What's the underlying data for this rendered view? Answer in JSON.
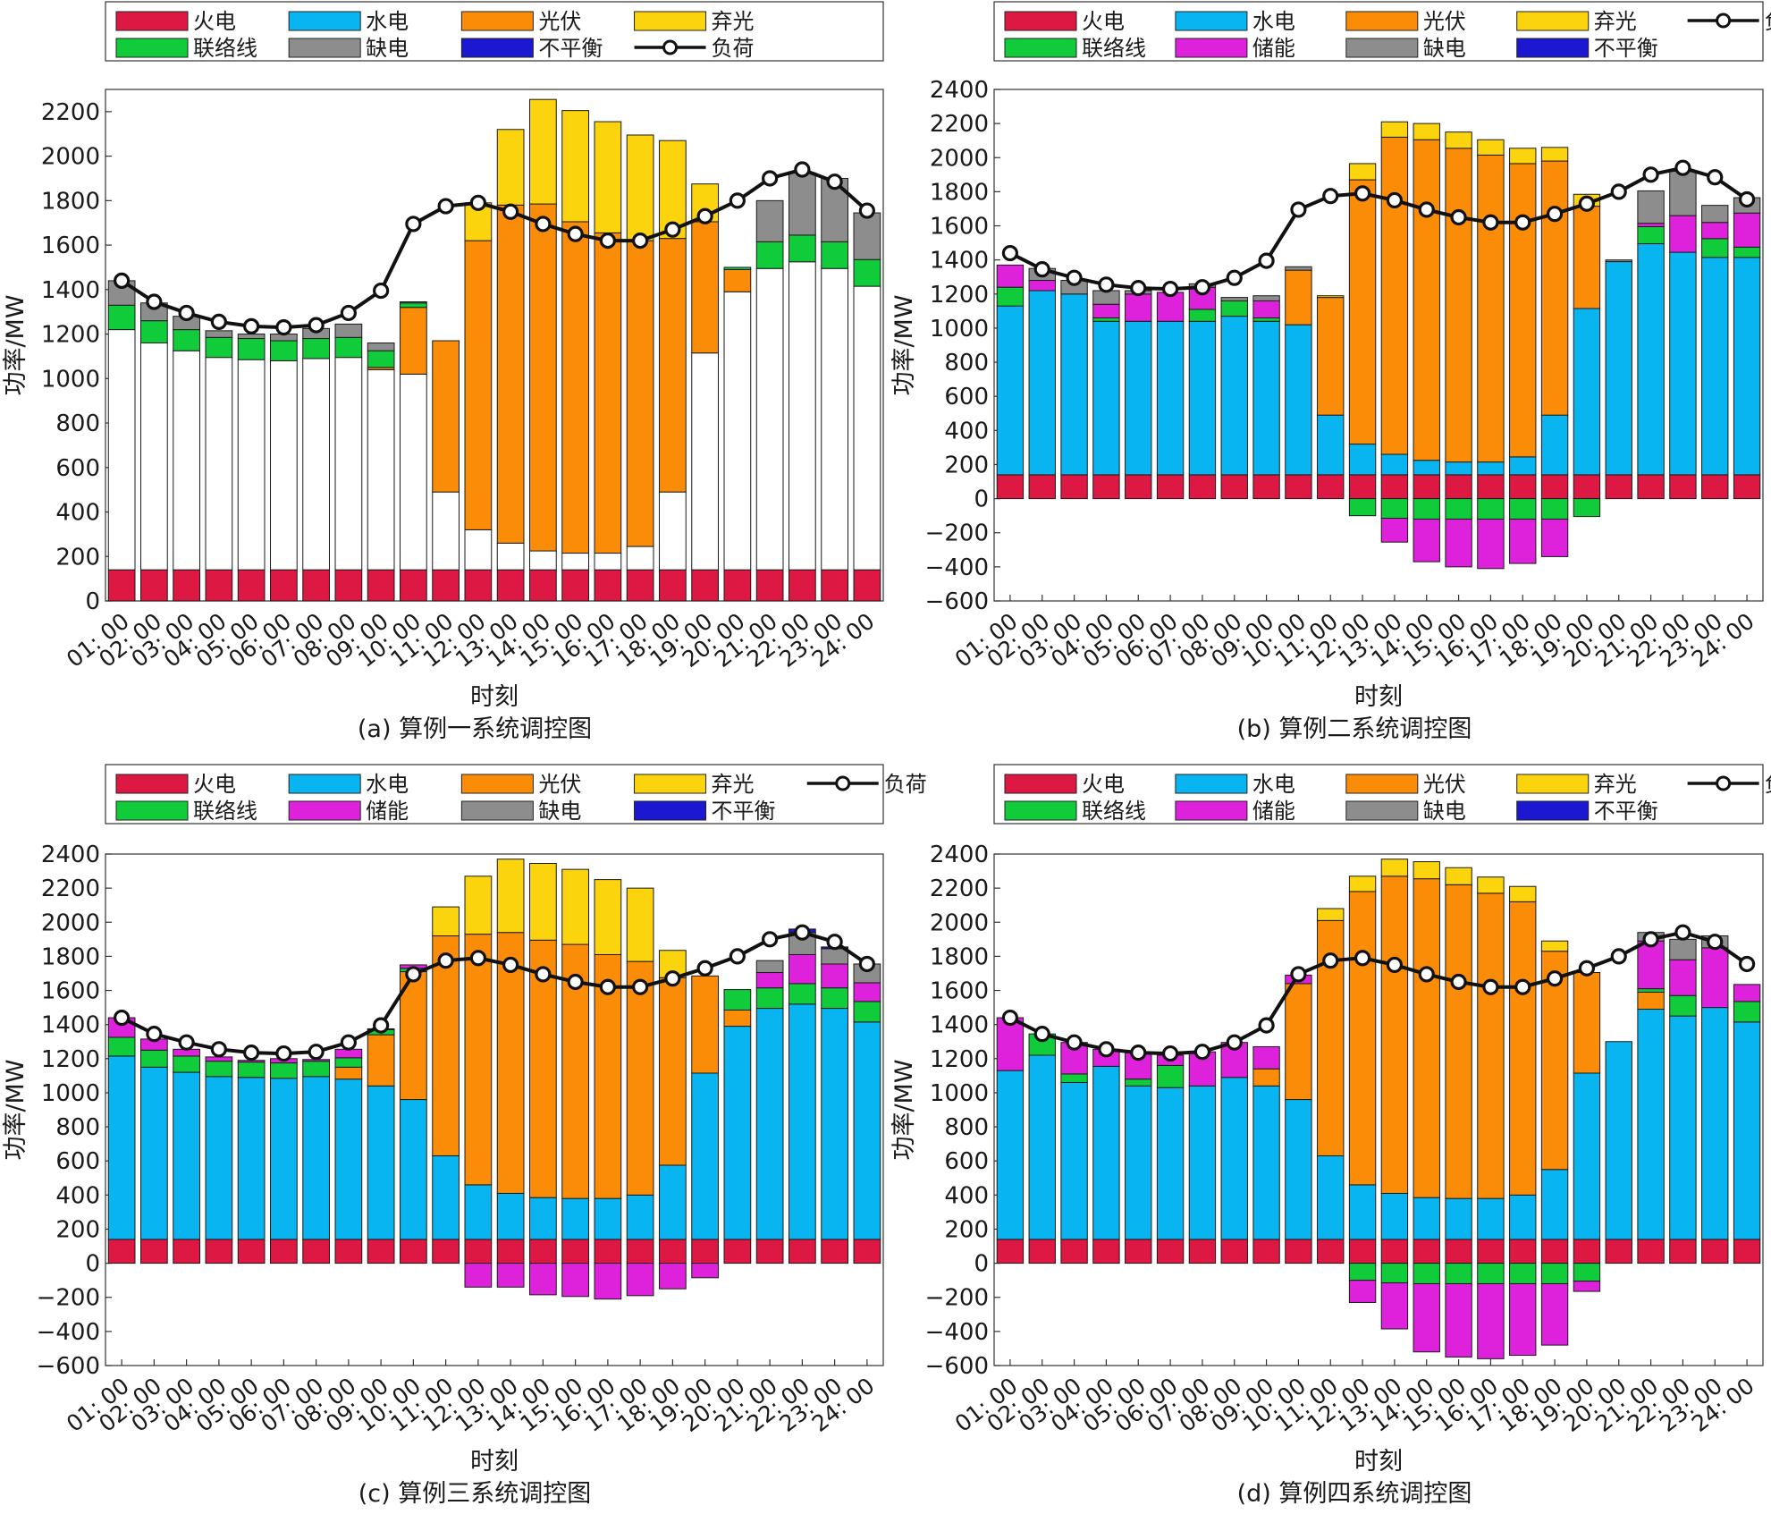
{
  "legend_labels": {
    "thermal": "火电",
    "hydro": "水电",
    "pv": "光伏",
    "curtail": "弃光",
    "tie": "联络线",
    "storage": "储能",
    "shortage": "缺电",
    "imbalance": "不平衡",
    "load": "负荷"
  },
  "colors": {
    "thermal": "#dc1843",
    "hydro": "#08b5f0",
    "pv": "#fb8c08",
    "curtail": "#fcd40e",
    "tie": "#10cc3b",
    "storage": "#de22dc",
    "shortage": "#8d8d8d",
    "imbalance": "#1c18d2",
    "load": "#111111"
  },
  "x_ticks": [
    "01:",
    "02:",
    "03:",
    "04:",
    "05:",
    "06:",
    "07:",
    "08:",
    "09:",
    "10:",
    "11:",
    "12:",
    "13:",
    "14:",
    "15:",
    "16:",
    "17:",
    "18:",
    "19:",
    "20:",
    "21:",
    "22:",
    "23:",
    "24:"
  ],
  "x_tick_suffix": "00",
  "chart_data": [
    {
      "type": "bar",
      "caption": "(a)  算例一系统调控图",
      "xlabel": "时刻",
      "ylabel": "功率/MW",
      "ylim": [
        0,
        2300
      ],
      "yticks": [
        0,
        200,
        400,
        600,
        800,
        1000,
        1200,
        1400,
        1600,
        1800,
        2000,
        2200
      ],
      "legend": [
        "thermal",
        "hydro",
        "pv",
        "curtail",
        "tie",
        "shortage",
        "imbalance",
        "load"
      ],
      "series": [
        {
          "key": "thermal",
          "name": "火电",
          "values": [
            140,
            140,
            140,
            140,
            140,
            140,
            140,
            140,
            140,
            140,
            140,
            140,
            140,
            140,
            140,
            140,
            140,
            140,
            140,
            140,
            140,
            140,
            140,
            140
          ]
        },
        {
          "key": "hydro_white",
          "name": "",
          "fill": "#ffffff",
          "values": [
            1080,
            1020,
            985,
            955,
            945,
            940,
            950,
            955,
            900,
            880,
            350,
            180,
            120,
            85,
            75,
            75,
            105,
            350,
            975,
            1250,
            1355,
            1385,
            1355,
            1275
          ]
        },
        {
          "key": "pv",
          "name": "光伏",
          "values": [
            0,
            0,
            0,
            0,
            0,
            0,
            0,
            0,
            10,
            300,
            680,
            1300,
            1520,
            1560,
            1490,
            1440,
            1375,
            1140,
            590,
            100,
            0,
            0,
            0,
            0
          ]
        },
        {
          "key": "curtail",
          "name": "弃光",
          "values": [
            0,
            0,
            0,
            0,
            0,
            0,
            0,
            0,
            0,
            0,
            0,
            170,
            340,
            470,
            500,
            500,
            475,
            440,
            170,
            0,
            0,
            0,
            0,
            0
          ]
        },
        {
          "key": "tie",
          "name": "联络线",
          "values": [
            110,
            100,
            95,
            90,
            95,
            90,
            90,
            90,
            75,
            20,
            0,
            0,
            0,
            0,
            0,
            0,
            0,
            0,
            0,
            10,
            120,
            120,
            120,
            120
          ]
        },
        {
          "key": "shortage",
          "name": "缺电",
          "values": [
            110,
            80,
            60,
            30,
            20,
            30,
            45,
            60,
            35,
            5,
            0,
            0,
            0,
            0,
            0,
            0,
            0,
            0,
            0,
            0,
            185,
            280,
            285,
            210
          ]
        }
      ],
      "load": [
        1440,
        1345,
        1295,
        1255,
        1235,
        1230,
        1240,
        1295,
        1395,
        1695,
        1775,
        1790,
        1750,
        1695,
        1650,
        1620,
        1620,
        1670,
        1730,
        1800,
        1900,
        1940,
        1885,
        1755
      ]
    },
    {
      "type": "bar",
      "caption": "(b)  算例二系统调控图",
      "xlabel": "时刻",
      "ylabel": "功率/MW",
      "ylim": [
        -600,
        2400
      ],
      "yticks": [
        -600,
        -400,
        -200,
        0,
        200,
        400,
        600,
        800,
        1000,
        1200,
        1400,
        1600,
        1800,
        2000,
        2200,
        2400
      ],
      "legend": [
        "thermal",
        "hydro",
        "pv",
        "curtail",
        "load",
        "tie",
        "storage",
        "shortage",
        "imbalance"
      ],
      "series": [
        {
          "key": "thermal",
          "name": "火电",
          "values": [
            140,
            140,
            140,
            140,
            140,
            140,
            140,
            140,
            140,
            140,
            140,
            140,
            140,
            140,
            140,
            140,
            140,
            140,
            140,
            140,
            140,
            140,
            140,
            140
          ]
        },
        {
          "key": "hydro",
          "name": "水电",
          "values": [
            990,
            1080,
            1060,
            900,
            900,
            900,
            900,
            930,
            900,
            880,
            350,
            180,
            120,
            85,
            75,
            75,
            105,
            350,
            975,
            1250,
            1355,
            1305,
            1275,
            1275
          ]
        },
        {
          "key": "pv",
          "name": "光伏",
          "values": [
            0,
            0,
            0,
            0,
            0,
            0,
            0,
            0,
            0,
            320,
            690,
            1550,
            1860,
            1880,
            1840,
            1800,
            1720,
            1490,
            600,
            0,
            0,
            0,
            0,
            0
          ]
        },
        {
          "key": "curtail",
          "name": "弃光",
          "values": [
            0,
            0,
            0,
            0,
            0,
            0,
            0,
            0,
            0,
            0,
            10,
            95,
            90,
            95,
            95,
            90,
            90,
            80,
            70,
            0,
            0,
            0,
            0,
            0
          ]
        },
        {
          "key": "tie",
          "name": "联络线",
          "values": [
            110,
            0,
            0,
            20,
            0,
            0,
            70,
            90,
            20,
            0,
            0,
            -100,
            -115,
            -120,
            -120,
            -120,
            -120,
            -120,
            -105,
            0,
            100,
            0,
            110,
            60
          ]
        },
        {
          "key": "storage",
          "name": "储能",
          "values": [
            130,
            60,
            0,
            80,
            160,
            170,
            130,
            0,
            100,
            0,
            0,
            0,
            -140,
            -250,
            -280,
            -290,
            -260,
            -220,
            0,
            0,
            20,
            215,
            95,
            200
          ]
        },
        {
          "key": "shortage",
          "name": "缺电",
          "values": [
            0,
            70,
            80,
            80,
            20,
            0,
            20,
            20,
            30,
            20,
            0,
            0,
            0,
            0,
            0,
            0,
            0,
            0,
            0,
            10,
            190,
            260,
            100,
            90
          ]
        }
      ],
      "load": [
        1440,
        1345,
        1295,
        1255,
        1235,
        1230,
        1240,
        1295,
        1395,
        1695,
        1775,
        1790,
        1750,
        1695,
        1650,
        1620,
        1620,
        1670,
        1730,
        1800,
        1900,
        1940,
        1885,
        1755
      ]
    },
    {
      "type": "bar",
      "caption": "(c)  算例三系统调控图",
      "xlabel": "时刻",
      "ylabel": "功率/MW",
      "ylim": [
        -600,
        2400
      ],
      "yticks": [
        -600,
        -400,
        -200,
        0,
        200,
        400,
        600,
        800,
        1000,
        1200,
        1400,
        1600,
        1800,
        2000,
        2200,
        2400
      ],
      "legend": [
        "thermal",
        "hydro",
        "pv",
        "curtail",
        "load",
        "tie",
        "storage",
        "shortage",
        "imbalance"
      ],
      "series": [
        {
          "key": "thermal",
          "name": "火电",
          "values": [
            140,
            140,
            140,
            140,
            140,
            140,
            140,
            140,
            140,
            140,
            140,
            140,
            140,
            140,
            140,
            140,
            140,
            140,
            140,
            140,
            140,
            140,
            140,
            140
          ]
        },
        {
          "key": "hydro",
          "name": "水电",
          "values": [
            1075,
            1010,
            980,
            955,
            950,
            945,
            955,
            940,
            900,
            820,
            490,
            320,
            270,
            245,
            240,
            240,
            260,
            435,
            975,
            1250,
            1355,
            1380,
            1355,
            1275
          ]
        },
        {
          "key": "pv",
          "name": "光伏",
          "values": [
            0,
            0,
            0,
            0,
            0,
            0,
            0,
            70,
            300,
            750,
            1290,
            1470,
            1530,
            1510,
            1490,
            1430,
            1370,
            1100,
            570,
            95,
            0,
            0,
            0,
            0
          ]
        },
        {
          "key": "curtail",
          "name": "弃光",
          "values": [
            0,
            0,
            0,
            0,
            0,
            0,
            0,
            0,
            0,
            0,
            170,
            340,
            430,
            450,
            440,
            440,
            430,
            160,
            0,
            0,
            0,
            0,
            0,
            0
          ]
        },
        {
          "key": "tie",
          "name": "联络线",
          "values": [
            110,
            100,
            95,
            90,
            90,
            90,
            90,
            55,
            30,
            20,
            0,
            0,
            0,
            0,
            0,
            0,
            0,
            0,
            0,
            120,
            120,
            120,
            120,
            120
          ]
        },
        {
          "key": "storage",
          "name": "储能",
          "values": [
            115,
            65,
            40,
            25,
            10,
            25,
            10,
            50,
            5,
            20,
            0,
            -140,
            -140,
            -185,
            -195,
            -210,
            -190,
            -150,
            -85,
            0,
            90,
            170,
            140,
            110
          ]
        },
        {
          "key": "shortage",
          "name": "缺电",
          "values": [
            0,
            0,
            0,
            0,
            0,
            0,
            0,
            0,
            0,
            0,
            0,
            0,
            0,
            0,
            0,
            0,
            0,
            0,
            0,
            0,
            70,
            130,
            90,
            110
          ]
        },
        {
          "key": "imbalance",
          "name": "不平衡",
          "values": [
            0,
            0,
            0,
            0,
            0,
            0,
            0,
            0,
            0,
            0,
            0,
            0,
            0,
            0,
            0,
            0,
            0,
            0,
            0,
            0,
            0,
            20,
            10,
            0
          ]
        }
      ],
      "load": [
        1440,
        1345,
        1295,
        1255,
        1235,
        1230,
        1240,
        1295,
        1395,
        1695,
        1775,
        1790,
        1750,
        1695,
        1650,
        1620,
        1620,
        1670,
        1730,
        1800,
        1900,
        1940,
        1885,
        1755
      ]
    },
    {
      "type": "bar",
      "caption": "(d)  算例四系统调控图",
      "xlabel": "时刻",
      "ylabel": "功率/MW",
      "ylim": [
        -600,
        2400
      ],
      "yticks": [
        -600,
        -400,
        -200,
        0,
        200,
        400,
        600,
        800,
        1000,
        1200,
        1400,
        1600,
        1800,
        2000,
        2200,
        2400
      ],
      "legend": [
        "thermal",
        "hydro",
        "pv",
        "curtail",
        "load",
        "tie",
        "storage",
        "shortage",
        "imbalance"
      ],
      "series": [
        {
          "key": "thermal",
          "name": "火电",
          "values": [
            140,
            140,
            140,
            140,
            140,
            140,
            140,
            140,
            140,
            140,
            140,
            140,
            140,
            140,
            140,
            140,
            140,
            140,
            140,
            140,
            140,
            140,
            140,
            140
          ]
        },
        {
          "key": "hydro",
          "name": "水电",
          "values": [
            990,
            1080,
            920,
            1015,
            900,
            890,
            900,
            950,
            900,
            820,
            490,
            320,
            270,
            245,
            240,
            240,
            260,
            410,
            975,
            1160,
            1350,
            1310,
            1360,
            1275
          ]
        },
        {
          "key": "pv",
          "name": "光伏",
          "values": [
            0,
            0,
            0,
            0,
            0,
            0,
            0,
            0,
            100,
            680,
            1380,
            1720,
            1860,
            1870,
            1840,
            1790,
            1720,
            1280,
            590,
            0,
            100,
            0,
            0,
            0
          ]
        },
        {
          "key": "curtail",
          "name": "弃光",
          "values": [
            0,
            0,
            0,
            0,
            0,
            0,
            0,
            0,
            0,
            0,
            70,
            90,
            100,
            100,
            100,
            95,
            90,
            60,
            0,
            0,
            0,
            0,
            0,
            0
          ]
        },
        {
          "key": "tie",
          "name": "联络线",
          "values": [
            0,
            125,
            50,
            0,
            40,
            130,
            0,
            0,
            0,
            0,
            0,
            -100,
            -115,
            -120,
            -120,
            -120,
            -120,
            -120,
            -105,
            0,
            20,
            120,
            0,
            120
          ]
        },
        {
          "key": "storage",
          "name": "储能",
          "values": [
            310,
            0,
            185,
            100,
            155,
            60,
            200,
            205,
            130,
            50,
            0,
            -130,
            -270,
            -400,
            -430,
            -440,
            -420,
            -360,
            -60,
            0,
            280,
            210,
            350,
            100
          ]
        },
        {
          "key": "shortage",
          "name": "缺电",
          "values": [
            0,
            0,
            0,
            0,
            0,
            0,
            0,
            0,
            0,
            0,
            0,
            0,
            0,
            0,
            0,
            0,
            0,
            0,
            0,
            0,
            50,
            120,
            70,
            0
          ]
        }
      ],
      "load": [
        1440,
        1345,
        1295,
        1255,
        1235,
        1230,
        1240,
        1295,
        1395,
        1695,
        1775,
        1790,
        1750,
        1695,
        1650,
        1620,
        1620,
        1670,
        1730,
        1800,
        1900,
        1940,
        1885,
        1755
      ]
    }
  ]
}
